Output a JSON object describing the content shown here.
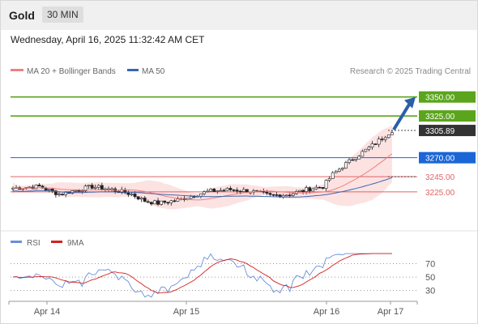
{
  "header": {
    "title": "Gold",
    "timeframe": "30 MIN"
  },
  "datetime": "Wednesday, April 16, 2025 11:32:42 AM CET",
  "legend": {
    "ma20": "MA 20 + Bollinger Bands",
    "ma50": "MA 50",
    "copyright": "Research © 2025 Trading Central"
  },
  "rsi_legend": {
    "rsi": "RSI",
    "ma": "9MA"
  },
  "colors": {
    "resistance": "#5aa51b",
    "support": "#1b66d6",
    "red_level": "#e06464",
    "current_price": "#333333",
    "arrow": "#2a5fa8",
    "band_fill": "#fde2e2",
    "ma20": "#f08080",
    "ma50": "#3a66b0",
    "rsi": "#6a8fd8",
    "rsi_ma": "#d42020",
    "bull_candle": "#ffffff",
    "bear_candle": "#222222"
  },
  "chart_data": [
    {
      "type": "candlestick",
      "x_ticks": [
        "Apr 14",
        "Apr 15",
        "Apr 16",
        "Apr 17"
      ],
      "ylim": [
        3180,
        3370
      ],
      "levels": [
        {
          "value": 3350.0,
          "label": "3350.00",
          "kind": "resistance"
        },
        {
          "value": 3325.0,
          "label": "3325.00",
          "kind": "resistance"
        },
        {
          "value": 3305.89,
          "label": "3305.89",
          "kind": "current"
        },
        {
          "value": 3270.0,
          "label": "3270.00",
          "kind": "support"
        },
        {
          "value": 3245.0,
          "label": "3245.00",
          "kind": "pivot"
        },
        {
          "value": 3225.0,
          "label": "3225.00",
          "kind": "support-red"
        }
      ],
      "arrow": {
        "from": 3307,
        "to": 3350
      },
      "series": [
        {
          "name": "MA 20 + Bollinger Bands"
        },
        {
          "name": "MA 50"
        }
      ]
    },
    {
      "type": "line",
      "ylim": [
        15,
        90
      ],
      "y_ticks": [
        70,
        50,
        30
      ],
      "series": [
        {
          "name": "RSI"
        },
        {
          "name": "9MA"
        }
      ]
    }
  ]
}
